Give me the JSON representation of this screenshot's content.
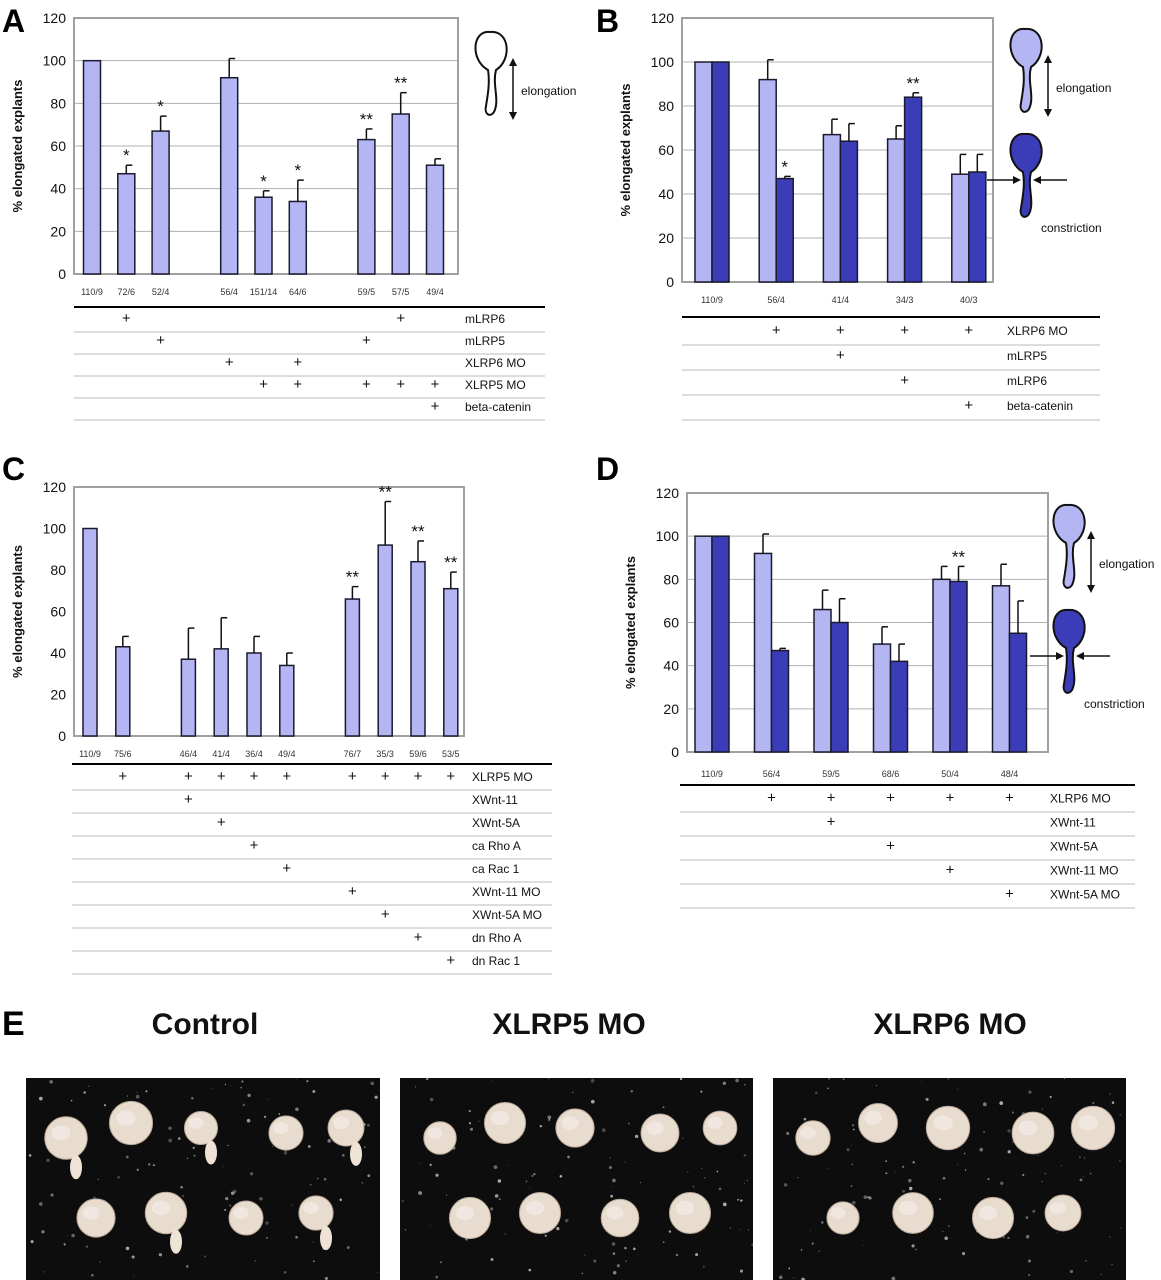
{
  "colors": {
    "light_bar": "#b4b6f4",
    "dark_bar": "#3b3db8",
    "frame": "#a0a0a0",
    "grid": "#b0b0b0",
    "bar_stroke": "#1a1a2e"
  },
  "chart_data": [
    {
      "panel": "A",
      "type": "bar",
      "ylabel": "% elongated explants",
      "ylim": [
        0,
        120
      ],
      "yticks": [
        0,
        20,
        40,
        60,
        80,
        100,
        120
      ],
      "grid": true,
      "series": [
        {
          "values": [
            100,
            47,
            67,
            null,
            92,
            36,
            34,
            null,
            63,
            75,
            51
          ],
          "errors": [
            0,
            4,
            7,
            null,
            9,
            3,
            10,
            null,
            5,
            10,
            3
          ],
          "significance": [
            "",
            "*",
            "*",
            "",
            "",
            "*",
            "*",
            "",
            "**",
            "**",
            ""
          ]
        }
      ],
      "n_labels": [
        "110/9",
        "72/6",
        "52/4",
        "",
        "56/4",
        "151/14",
        "64/6",
        "",
        "59/5",
        "57/5",
        "49/4"
      ],
      "conditions": [
        {
          "label": "mLRP6",
          "plus": [
            1,
            9
          ]
        },
        {
          "label": "mLRP5",
          "plus": [
            2,
            8
          ]
        },
        {
          "label": "XLRP6 MO",
          "plus": [
            4,
            6
          ]
        },
        {
          "label": "XLRP5 MO",
          "plus": [
            5,
            6,
            8,
            9,
            10
          ]
        },
        {
          "label": "beta-catenin",
          "plus": [
            10
          ]
        }
      ],
      "legend": [
        {
          "style": "outline",
          "label": "elongation"
        }
      ]
    },
    {
      "panel": "B",
      "type": "bar",
      "ylabel": "% elongated explants",
      "ylim": [
        0,
        120
      ],
      "yticks": [
        0,
        20,
        40,
        60,
        80,
        100,
        120
      ],
      "grid": true,
      "series": [
        {
          "values": [
            100,
            92,
            67,
            65,
            49
          ],
          "errors": [
            0,
            9,
            7,
            6,
            9
          ],
          "significance": [
            "",
            "",
            "",
            "",
            ""
          ]
        },
        {
          "values": [
            100,
            47,
            64,
            84,
            50
          ],
          "errors": [
            0,
            1,
            8,
            2,
            8
          ],
          "significance": [
            "",
            "*",
            "",
            "**",
            ""
          ]
        }
      ],
      "n_labels": [
        "110/9",
        "56/4",
        "41/4",
        "34/3",
        "40/3"
      ],
      "conditions": [
        {
          "label": "XLRP6 MO",
          "plus": [
            1,
            2,
            3,
            4
          ]
        },
        {
          "label": "mLRP5",
          "plus": [
            2
          ]
        },
        {
          "label": "mLRP6",
          "plus": [
            3
          ]
        },
        {
          "label": "beta-catenin",
          "plus": [
            4
          ]
        }
      ],
      "legend": [
        {
          "style": "light",
          "label": "elongation"
        },
        {
          "style": "dark",
          "label": "constriction"
        }
      ]
    },
    {
      "panel": "C",
      "type": "bar",
      "ylabel": "% elongated explants",
      "ylim": [
        0,
        120
      ],
      "yticks": [
        0,
        20,
        40,
        60,
        80,
        100,
        120
      ],
      "grid": false,
      "series": [
        {
          "values": [
            100,
            43,
            null,
            37,
            42,
            40,
            34,
            null,
            66,
            92,
            84,
            71
          ],
          "errors": [
            0,
            5,
            null,
            15,
            15,
            8,
            6,
            null,
            6,
            21,
            10,
            8
          ],
          "significance": [
            "",
            "",
            "",
            "",
            "",
            "",
            "",
            "",
            "**",
            "**",
            "**",
            "**"
          ]
        }
      ],
      "n_labels": [
        "110/9",
        "75/6",
        "",
        "46/4",
        "41/4",
        "36/4",
        "49/4",
        "",
        "76/7",
        "35/3",
        "59/6",
        "53/5"
      ],
      "conditions": [
        {
          "label": "XLRP5 MO",
          "plus": [
            1,
            3,
            4,
            5,
            6,
            8,
            9,
            10,
            11
          ]
        },
        {
          "label": "XWnt-11",
          "plus": [
            3
          ]
        },
        {
          "label": "XWnt-5A",
          "plus": [
            4
          ]
        },
        {
          "label": "ca Rho A",
          "plus": [
            5
          ]
        },
        {
          "label": "ca Rac 1",
          "plus": [
            6
          ]
        },
        {
          "label": "XWnt-11 MO",
          "plus": [
            8
          ]
        },
        {
          "label": "XWnt-5A MO",
          "plus": [
            9
          ]
        },
        {
          "label": "dn Rho A",
          "plus": [
            10
          ]
        },
        {
          "label": "dn Rac 1",
          "plus": [
            11
          ]
        }
      ],
      "legend": []
    },
    {
      "panel": "D",
      "type": "bar",
      "ylabel": "% elongated explants",
      "ylim": [
        0,
        120
      ],
      "yticks": [
        0,
        20,
        40,
        60,
        80,
        100,
        120
      ],
      "grid": true,
      "series": [
        {
          "values": [
            100,
            92,
            66,
            50,
            80,
            77
          ],
          "errors": [
            0,
            9,
            9,
            8,
            6,
            10
          ],
          "significance": [
            "",
            "",
            "",
            "",
            "",
            ""
          ]
        },
        {
          "values": [
            100,
            47,
            60,
            42,
            79,
            55
          ],
          "errors": [
            0,
            1,
            11,
            8,
            7,
            15
          ],
          "significance": [
            "",
            "",
            "",
            "",
            "**",
            ""
          ]
        }
      ],
      "n_labels": [
        "110/9",
        "56/4",
        "59/5",
        "68/6",
        "50/4",
        "48/4"
      ],
      "conditions": [
        {
          "label": "XLRP6 MO",
          "plus": [
            1,
            2,
            3,
            4,
            5
          ]
        },
        {
          "label": "XWnt-11",
          "plus": [
            2
          ]
        },
        {
          "label": "XWnt-5A",
          "plus": [
            3
          ]
        },
        {
          "label": "XWnt-11 MO",
          "plus": [
            4
          ]
        },
        {
          "label": "XWnt-5A MO",
          "plus": [
            5
          ]
        }
      ],
      "legend": [
        {
          "style": "light",
          "label": "elongation"
        },
        {
          "style": "dark",
          "label": "constriction"
        }
      ]
    }
  ],
  "panel_letters": {
    "A": "A",
    "B": "B",
    "C": "C",
    "D": "D",
    "E": "E"
  },
  "photos": [
    {
      "title": "Control"
    },
    {
      "title": "XLRP5 MO"
    },
    {
      "title": "XLRP6 MO"
    }
  ]
}
